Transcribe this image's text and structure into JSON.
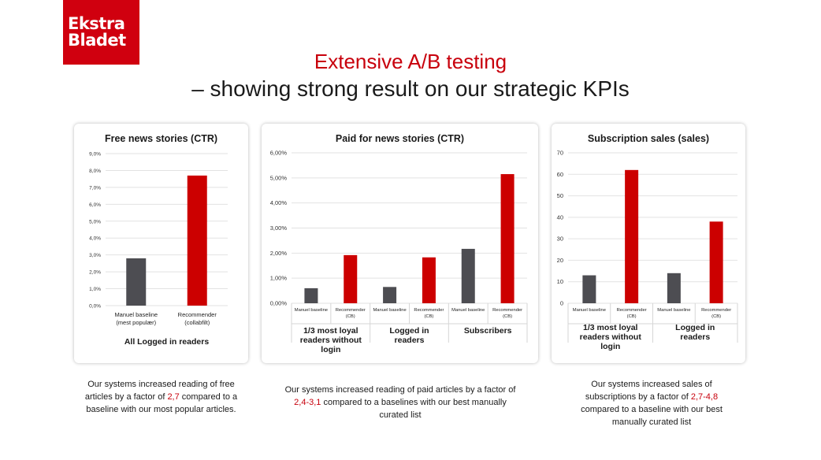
{
  "brand": {
    "logo_line1": "Ekstra",
    "logo_line2": "Bladet"
  },
  "header": {
    "title": "Extensive A/B testing",
    "subtitle": "– showing strong result on our strategic KPIs"
  },
  "colors": {
    "baseline": "#4d4d52",
    "recommender": "#cc0000",
    "accent": "#c8000c"
  },
  "captions": [
    {
      "pre": "Our systems increased reading of free articles by a factor of ",
      "factor": "2,7",
      "post": " compared to a baseline with our most popular articles."
    },
    {
      "pre": "Our systems increased reading of paid articles by a factor of ",
      "factor": "2,4-3,1",
      "post": " compared to a baselines with our best manually curated list"
    },
    {
      "pre": "Our systems increased sales of subscriptions by a factor of ",
      "factor": "2,7-4,8",
      "post": " compared to a baseline with our best manually curated list"
    }
  ],
  "chart_data": [
    {
      "type": "bar",
      "title": "Free news stories (CTR)",
      "ylim": [
        0,
        9
      ],
      "yticks": [
        "0,0%",
        "1,0%",
        "2,0%",
        "3,0%",
        "4,0%",
        "5,0%",
        "6,0%",
        "7,0%",
        "8,0%",
        "9,0%"
      ],
      "categories": [
        {
          "label": "Manuel baseline",
          "sub": "(mest populær)",
          "value": 2.8,
          "series": "baseline"
        },
        {
          "label": "Recommender",
          "sub": "(collabfilt)",
          "value": 7.7,
          "series": "recommender"
        }
      ],
      "groups": [
        {
          "label": "All Logged in readers"
        }
      ],
      "grid": true
    },
    {
      "type": "bar",
      "title": "Paid for news stories (CTR)",
      "ylim": [
        0,
        6
      ],
      "yticks": [
        "0,00%",
        "1,00%",
        "2,00%",
        "3,00%",
        "4,00%",
        "5,00%",
        "6,00%"
      ],
      "categories": [
        {
          "label": "Manuel baseline",
          "value": 0.6,
          "series": "baseline"
        },
        {
          "label": "Recommender",
          "sub": "(CB)",
          "value": 1.92,
          "series": "recommender"
        },
        {
          "label": "Manuel baseline",
          "value": 0.65,
          "series": "baseline"
        },
        {
          "label": "Recommender",
          "sub": "(CB)",
          "value": 1.83,
          "series": "recommender"
        },
        {
          "label": "Manuel baseline",
          "value": 2.17,
          "series": "baseline"
        },
        {
          "label": "Recommender",
          "sub": "(CB)",
          "value": 5.15,
          "series": "recommender"
        }
      ],
      "groups": [
        {
          "label": "1/3 most loyal readers without login"
        },
        {
          "label": "Logged in readers"
        },
        {
          "label": "Subscribers"
        }
      ],
      "grid": true
    },
    {
      "type": "bar",
      "title": "Subscription sales (sales)",
      "ylim": [
        0,
        70
      ],
      "yticks": [
        "0",
        "10",
        "20",
        "30",
        "40",
        "50",
        "60",
        "70"
      ],
      "categories": [
        {
          "label": "Manuel baseline",
          "value": 13,
          "series": "baseline"
        },
        {
          "label": "Recommender",
          "sub": "(CB)",
          "value": 62,
          "series": "recommender"
        },
        {
          "label": "Manuel baseline",
          "value": 14,
          "series": "baseline"
        },
        {
          "label": "Recommender",
          "sub": "(CB)",
          "value": 38,
          "series": "recommender"
        }
      ],
      "groups": [
        {
          "label": "1/3 most loyal readers without login"
        },
        {
          "label": "Logged in readers"
        }
      ],
      "grid": true
    }
  ]
}
